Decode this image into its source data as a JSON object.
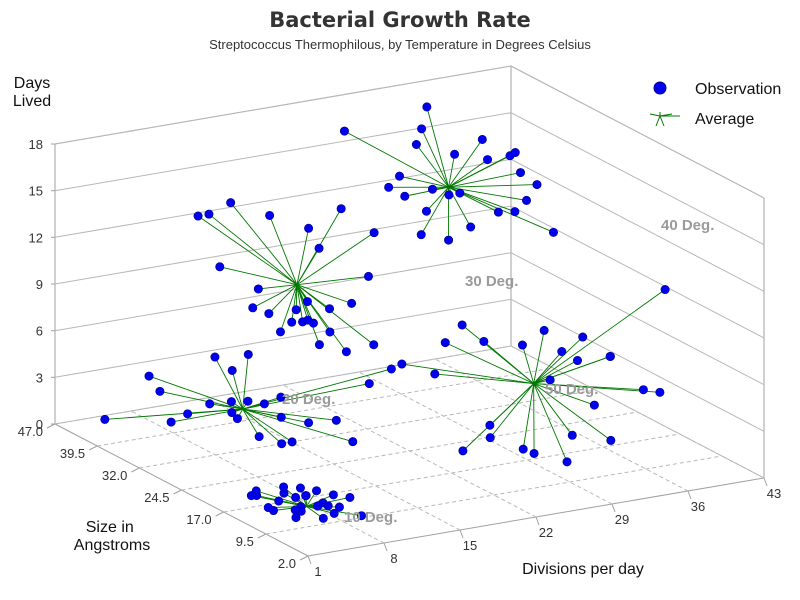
{
  "chart_data": {
    "type": "scatter",
    "title": "Bacterial Growth Rate",
    "subtitle": "Streptococcus Thermophilous, by Temperature in Degrees Celsius",
    "xlabel": "Divisions per day",
    "ylabel": "Size in Angstroms",
    "zlabel": [
      "Days",
      "Lived"
    ],
    "x_ticks": [
      "1",
      "8",
      "15",
      "22",
      "29",
      "36",
      "43"
    ],
    "y_ticks": [
      "2.0",
      "9.5",
      "17.0",
      "24.5",
      "32.0",
      "39.5",
      "47.0"
    ],
    "z_ticks": [
      "0",
      "3",
      "6",
      "9",
      "12",
      "15",
      "18"
    ],
    "xlim": [
      1,
      43
    ],
    "ylim": [
      2,
      47
    ],
    "zlim": [
      0,
      18
    ],
    "grid": true,
    "legend": {
      "placement": "top-right",
      "items": [
        {
          "label": "Observation",
          "symbol": "circle",
          "color": "#0000ee"
        },
        {
          "label": "Average",
          "symbol": "star-lines",
          "color": "#007700"
        }
      ]
    },
    "colors": {
      "observation": "#0000ee",
      "average": "#007700",
      "cluster_label": "#9a9a9a"
    },
    "groups": [
      {
        "label": "10 Deg.",
        "average": [
          5,
          10,
          1.2
        ],
        "points": [
          [
            4,
            13,
            1.1
          ],
          [
            5,
            14,
            1.3
          ],
          [
            3,
            15,
            1.2
          ],
          [
            6,
            12,
            1.4
          ],
          [
            5,
            11,
            1.0
          ],
          [
            4,
            9,
            1.2
          ],
          [
            6,
            9,
            1.5
          ],
          [
            7,
            10,
            1.0
          ],
          [
            3,
            8,
            1.1
          ],
          [
            5,
            8,
            1.6
          ],
          [
            2,
            11,
            1.3
          ],
          [
            7,
            14,
            0.9
          ],
          [
            4,
            17,
            1.0
          ],
          [
            6,
            16,
            1.2
          ],
          [
            8,
            11,
            1.4
          ],
          [
            5,
            7,
            1.0
          ],
          [
            3,
            12,
            0.8
          ],
          [
            6,
            13,
            1.7
          ],
          [
            4,
            10,
            1.9
          ],
          [
            7,
            8,
            1.3
          ],
          [
            2,
            14,
            1.5
          ],
          [
            8,
            14,
            1.1
          ],
          [
            6,
            7,
            1.2
          ],
          [
            5,
            12,
            0.6
          ],
          [
            9,
            10,
            1.3
          ],
          [
            8,
            6,
            1.0
          ]
        ]
      },
      {
        "label": "20 Deg.",
        "average": [
          10,
          31,
          2.9
        ],
        "points": [
          [
            3,
            42,
            1.0
          ],
          [
            5,
            38,
            4.3
          ],
          [
            6,
            36,
            1.6
          ],
          [
            9,
            34,
            5.8
          ],
          [
            10,
            30,
            6.6
          ],
          [
            12,
            28,
            2.7
          ],
          [
            11,
            30,
            1.2
          ],
          [
            14,
            27,
            2.3
          ],
          [
            13,
            28,
            1.0
          ],
          [
            9,
            31,
            2.8
          ],
          [
            8,
            33,
            3.1
          ],
          [
            7,
            35,
            2.2
          ],
          [
            12,
            31,
            3.0
          ],
          [
            11,
            32,
            3.1
          ],
          [
            10,
            33,
            3.0
          ],
          [
            9,
            30,
            2.6
          ],
          [
            15,
            24,
            2.9
          ],
          [
            17,
            22,
            5.4
          ],
          [
            18,
            20,
            6.6
          ],
          [
            16,
            23,
            1.6
          ],
          [
            6,
            38,
            3.2
          ],
          [
            13,
            30,
            3.5
          ],
          [
            8,
            29,
            6.0
          ],
          [
            11,
            26,
            1.5
          ]
        ]
      },
      {
        "label": "30 Deg.",
        "average": [
          15,
          31,
          10.3
        ],
        "points": [
          [
            9,
            37,
            14.3
          ],
          [
            10,
            37,
            14.3
          ],
          [
            13,
            32,
            14.8
          ],
          [
            12,
            37,
            14.8
          ],
          [
            14,
            27,
            14.8
          ],
          [
            16,
            29,
            12.9
          ],
          [
            17,
            27,
            15.7
          ],
          [
            19,
            25,
            14.3
          ],
          [
            11,
            37,
            10.8
          ],
          [
            13,
            35,
            8.3
          ],
          [
            14,
            30,
            8.2
          ],
          [
            15,
            30,
            8.1
          ],
          [
            16,
            30,
            7.9
          ],
          [
            17,
            29,
            7.4
          ],
          [
            15,
            27,
            7.2
          ],
          [
            16,
            31,
            7.9
          ],
          [
            17,
            33,
            8.6
          ],
          [
            18,
            31,
            8.4
          ],
          [
            19,
            29,
            9.0
          ],
          [
            14,
            32,
            7.2
          ],
          [
            20,
            27,
            6.6
          ],
          [
            17,
            35,
            7.7
          ],
          [
            15,
            36,
            7.5
          ],
          [
            18,
            28,
            6.2
          ],
          [
            13,
            34,
            9.7
          ],
          [
            19,
            26,
            11.3
          ]
        ]
      },
      {
        "label": "40 Deg.",
        "average": [
          30,
          33,
          14.4
        ],
        "points": [
          [
            23,
            38,
            17.9
          ],
          [
            27,
            32,
            18.7
          ],
          [
            28,
            33,
            19.8
          ],
          [
            26,
            31,
            18.0
          ],
          [
            29,
            30,
            17.2
          ],
          [
            30,
            27,
            18.6
          ],
          [
            31,
            28,
            17.0
          ],
          [
            31,
            24,
            18.0
          ],
          [
            32,
            25,
            17.9
          ],
          [
            33,
            26,
            16.3
          ],
          [
            34,
            25,
            15.6
          ],
          [
            32,
            23,
            15.2
          ],
          [
            35,
            24,
            12.6
          ],
          [
            30,
            31,
            14.4
          ],
          [
            25,
            34,
            14.8
          ],
          [
            27,
            35,
            13.8
          ],
          [
            29,
            35,
            12.6
          ],
          [
            28,
            34,
            11.4
          ],
          [
            30,
            33,
            11.0
          ],
          [
            31,
            31,
            12.1
          ],
          [
            26,
            34,
            15.4
          ],
          [
            28,
            32,
            14.7
          ],
          [
            32,
            28,
            13.5
          ],
          [
            29,
            31,
            14.4
          ],
          [
            33,
            27,
            13.6
          ]
        ]
      },
      {
        "label": "50 Deg.",
        "average": [
          28,
          14,
          5.6
        ],
        "points": [
          [
            20,
            22,
            6.3
          ],
          [
            22,
            20,
            5.8
          ],
          [
            24,
            22,
            7.2
          ],
          [
            26,
            19,
            7.6
          ],
          [
            28,
            16,
            7.7
          ],
          [
            30,
            16,
            8.4
          ],
          [
            32,
            13,
            8.3
          ],
          [
            31,
            12,
            7.1
          ],
          [
            33,
            10,
            7.5
          ],
          [
            34,
            12,
            7.0
          ],
          [
            28,
            9,
            8.6
          ],
          [
            25,
            16,
            2.9
          ],
          [
            24,
            14,
            2.6
          ],
          [
            26,
            12,
            2.0
          ],
          [
            27,
            12,
            1.6
          ],
          [
            22,
            15,
            1.8
          ],
          [
            29,
            10,
            1.2
          ],
          [
            30,
            11,
            2.6
          ],
          [
            31,
            9,
            4.8
          ],
          [
            32,
            8,
            2.6
          ],
          [
            35,
            8,
            5.5
          ],
          [
            36,
            7,
            5.4
          ],
          [
            37,
            8,
            11.7
          ],
          [
            24,
            19,
            8.9
          ],
          [
            29,
            13,
            5.9
          ]
        ]
      }
    ]
  }
}
